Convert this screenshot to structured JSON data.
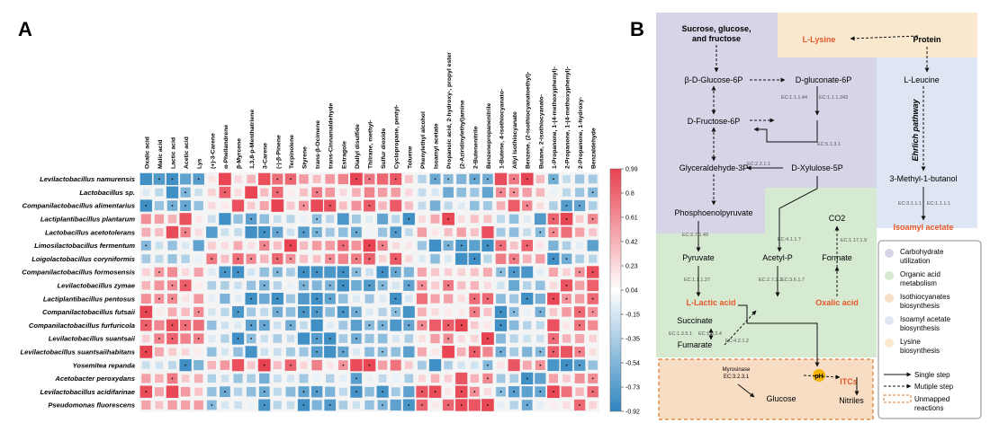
{
  "panel_a": {
    "letter": "A",
    "rows": [
      "Levilactobacillus namurensis",
      "Lactobacillus sp.",
      "Companilactobacillus alimentarius",
      "Lactiplantibacillus plantarum",
      "Lactobacillus acetotolerans",
      "Limosilactobacillus fermentum",
      "Loigolactobacillus coryniformis",
      "Companilactobacillus formosensis",
      "Levilactobacillus zymae",
      "Lactiplantibacillus pentosus",
      "Companilactobacillus futsaii",
      "Companilactobacillus furfuricola",
      "Levilactobacillus suantsaii",
      "Levilactobacillus suantsaiihabitans",
      "Yosemitea repanda",
      "Acetobacter peroxydans",
      "Levilactobacillus acidifarinae",
      "Pseudomonas fluorescens"
    ],
    "columns": [
      "Oxalic acid",
      "Malic acid",
      "Lactic acid",
      "Acetic acid",
      "Lys",
      "(+)-3-Carene",
      "α-Phellandrene",
      "β-Myrcene",
      "1,3,8-p-Menthatriene",
      "3-Carene",
      "(-)-β-Pinene",
      "Terpinolene",
      "Styrene",
      "trans-β-Ocimene",
      "trans-Cinnamaldehyde",
      "Estragole",
      "Diallyl disulfide",
      "Thiirane, methyl-",
      "Sulfur dioxide",
      "Cyclopropane, pentyl-",
      "Toluene",
      "Phenylethyl alcohol",
      "Isoamyl acetate",
      "Propanoic acid, 2-hydroxy-, propyl ester",
      "(2-Aziridinylethyl)amine",
      "2-Butenenitrile",
      "Benzenepropanenitrile",
      "1-Butene, 4-isothiocyanato-",
      "Allyl Isothiocyanate",
      "Benzene, (2-isothiocyanatoethyl)-",
      "Butane, 2-isothiocyanato-",
      "1-Propanone, 1-(4-methoxyphenyl)-",
      "2-Propanone, 1-(4-methoxyphenyl)-",
      "2-Propanone, 1-hydroxy-",
      "Benzaldehyde"
    ],
    "colorbar": {
      "ticks": [
        "0.99",
        "0.8",
        "0.61",
        "0.42",
        "0.23",
        "0.04",
        "-0.15",
        "-0.35",
        "-0.54",
        "-0.73",
        "-0.92"
      ],
      "colors": {
        "positive": "#e8414f",
        "neutral": "#ffffff",
        "negative": "#2f86c0"
      }
    },
    "chart_data": {
      "type": "heatmap",
      "value_range": [
        -0.92,
        0.99
      ]
    }
  },
  "panel_b": {
    "letter": "B",
    "nodes": {
      "sugars": "Sucrose, glucose, and fructose",
      "protein": "Protein",
      "l_lysine": "L-Lysine",
      "bdg6p": "β-D-Glucose-6P",
      "dgluconate": "D-gluconate-6P",
      "l_leucine": "L-Leucine",
      "df6p": "D-Fructose-6P",
      "ehrlich": "Ehrlich pathway",
      "dx5p": "D-Xylulose-5P",
      "g3p": "Glyceraldehyde-3P",
      "methylbutanol": "3-Methyl-1-butanol",
      "isoamyl": "Isoamyl acetate",
      "pep": "Phosphoenolpyruvate",
      "co2": "CO2",
      "pyruvate": "Pyruvate",
      "acetylp": "Acetyl-P",
      "formate": "Formate",
      "llactic": "L-Lactic acid",
      "oxalic": "Oxalic acid",
      "succinate": "Succinate",
      "fumarate": "Fumarate",
      "myrosinase": "Myrosinase",
      "myrosinase_ec": "EC:3.2.3.1",
      "ph": "pH",
      "itcs": "ITCs",
      "glucose": "Glucose",
      "nitriles": "Nitriles"
    },
    "ec": {
      "ec1": "EC:1.1.1.44",
      "ec2": "EC:1.1.1.343",
      "ec3": "EC:5.1.3.1",
      "ec4": "EC:2.2.1.1",
      "ec5": "EC:2.7.1.40",
      "ec6": "EC:4.1.1.7",
      "ec7": "EC:1.17.1.9",
      "ec8": "EC:1.1.1.27",
      "ec9": "EC:2.7.2.1",
      "ec10": "EC:3.6.1.7",
      "ec11": "EC:1.3.5.1",
      "ec12": "EC:1.3.2.4",
      "ec13": "EC:4.2.1.2",
      "ec14": "EC:3.1.1.1",
      "ec15": "EC:1.1.1.1"
    },
    "legend": {
      "items": [
        {
          "label": "Carbohydrate utilization",
          "color": "#d8d4e8"
        },
        {
          "label": "Organic acid metabolism",
          "color": "#d6ead2"
        },
        {
          "label": "Isothiocyanates biosynthesis",
          "color": "#f7ddc4"
        },
        {
          "label": "Isoamyl acetate biosynthesis",
          "color": "#dde6f2"
        },
        {
          "label": "Lysine biosynthesis",
          "color": "#fbe9cf"
        }
      ],
      "single_step": "Single step",
      "multiple_step": "Mutiple step",
      "unmapped": "Unmapped reactions"
    }
  }
}
